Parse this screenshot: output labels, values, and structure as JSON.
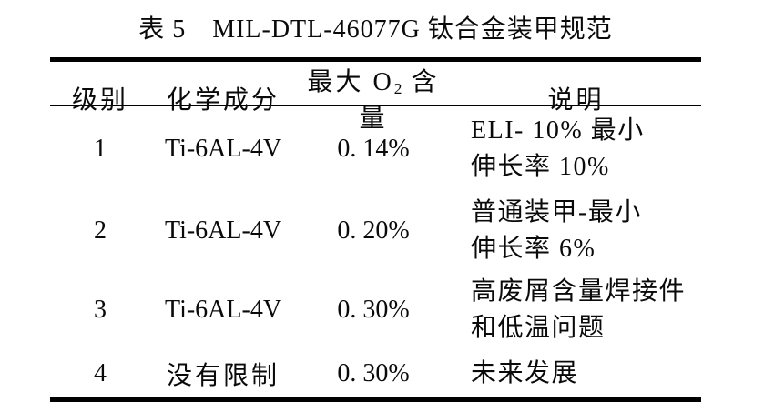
{
  "title": "表 5　MIL-DTL-46077G 钛合金装甲规范",
  "table": {
    "headers": {
      "level": "级别",
      "composition": "化学成分",
      "max_o2_pre": "最大 O",
      "max_o2_sub": "2",
      "max_o2_post": " 含量",
      "description": "说明"
    },
    "rows": [
      {
        "level": "1",
        "composition": "Ti-6AL-4V",
        "max_o2": "0. 14%",
        "description_line1": "ELI- 10% 最小",
        "description_line2": "伸长率 10%"
      },
      {
        "level": "2",
        "composition": "Ti-6AL-4V",
        "max_o2": "0. 20%",
        "description_line1": "普通装甲-最小",
        "description_line2": "伸长率 6%"
      },
      {
        "level": "3",
        "composition": "Ti-6AL-4V",
        "max_o2": "0. 30%",
        "description_line1": "高废屑含量焊接件",
        "description_line2": "和低温问题"
      },
      {
        "level": "4",
        "composition": "没有限制",
        "max_o2": "0. 30%",
        "description_line1": "未来发展",
        "description_line2": ""
      }
    ]
  },
  "colors": {
    "text": "#0a0a0a",
    "background": "#ffffff",
    "rule": "#000000"
  }
}
